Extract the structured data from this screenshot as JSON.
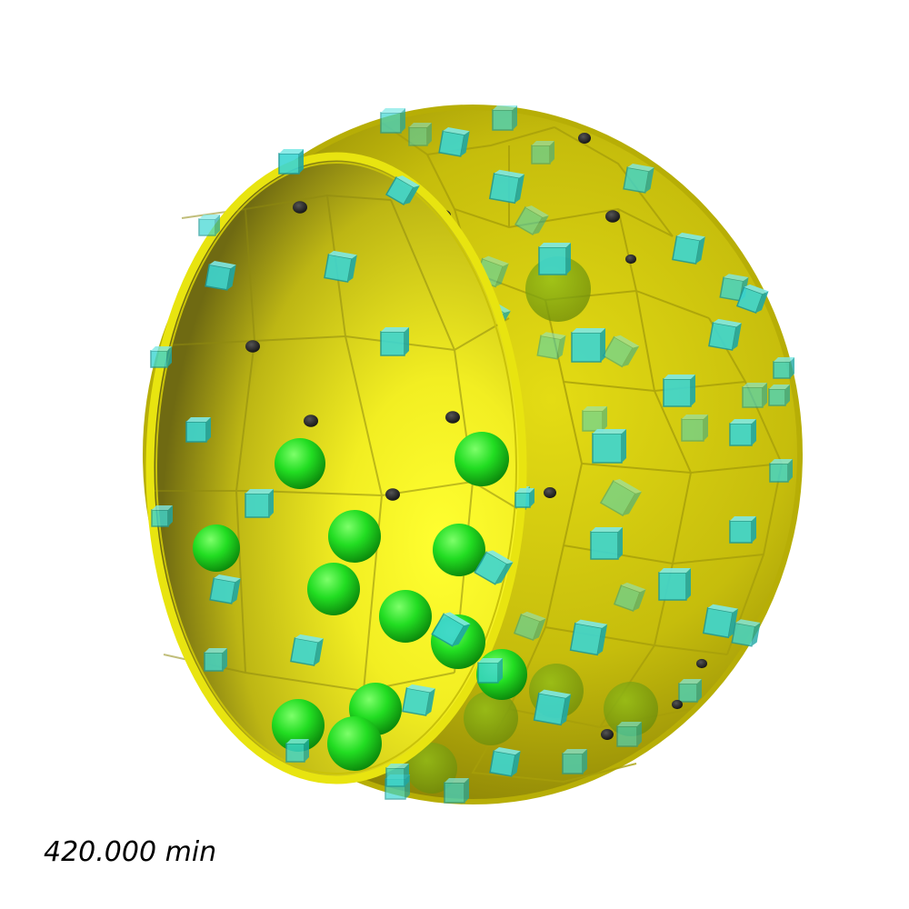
{
  "simulation": {
    "time_label": "420.000 min"
  },
  "scene": {
    "description_hidden": false,
    "colors": {
      "background": "#ffffff",
      "shell": "#d8d200",
      "shell_rim": "#e6e000",
      "particle_cube": "#33c9c4",
      "particle_sphere": "#22dd22",
      "pore": "#2a2a2a",
      "label_text": "#000000"
    },
    "counts": {
      "green_spheres_visible": 15,
      "cyan_cubes_visible": 80,
      "dark_pores_visible": 10
    }
  }
}
